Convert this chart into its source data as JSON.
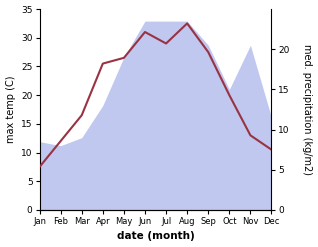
{
  "months": [
    "Jan",
    "Feb",
    "Mar",
    "Apr",
    "May",
    "Jun",
    "Jul",
    "Aug",
    "Sep",
    "Oct",
    "Nov",
    "Dec"
  ],
  "temperature": [
    7.5,
    12.0,
    16.5,
    25.5,
    26.5,
    31.0,
    29.0,
    32.5,
    27.5,
    20.0,
    13.0,
    10.5
  ],
  "precipitation": [
    8.5,
    8.0,
    9.0,
    13.0,
    19.0,
    23.5,
    23.5,
    23.5,
    20.5,
    15.0,
    20.5,
    11.5
  ],
  "temp_color": "#993344",
  "precip_fill_color": "#c0c8f0",
  "temp_ylim": [
    0,
    35
  ],
  "precip_ylim": [
    0,
    25
  ],
  "precip_right_ticks": [
    0,
    5,
    10,
    15,
    20
  ],
  "temp_left_ticks": [
    0,
    5,
    10,
    15,
    20,
    25,
    30,
    35
  ],
  "xlabel": "date (month)",
  "ylabel_left": "max temp (C)",
  "ylabel_right": "med. precipitation (kg/m2)"
}
